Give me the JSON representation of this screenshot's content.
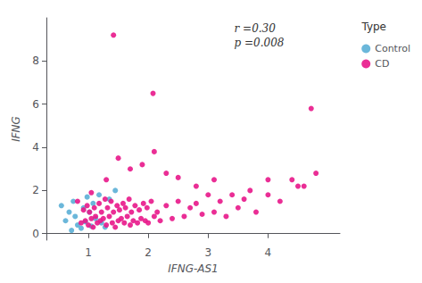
{
  "chart_data": {
    "type": "scatter",
    "xlabel": "IFNG-AS1",
    "ylabel": "IFNG",
    "annotations": [
      "r =0.30",
      "p =0.008"
    ],
    "legend_title": "Type",
    "legend": "upper right",
    "grid": false,
    "xlim": [
      0.3,
      5.2
    ],
    "ylim": [
      -0.3,
      10.0
    ],
    "xticks": [
      1,
      2,
      3,
      4
    ],
    "yticks": [
      0,
      2,
      4,
      6,
      8
    ],
    "series": [
      {
        "name": "Control",
        "color": "#5BAFD6",
        "x": [
          0.55,
          0.62,
          0.68,
          0.72,
          0.75,
          0.78,
          0.82,
          0.88,
          0.92,
          0.95,
          0.98,
          1.02,
          1.05,
          1.08,
          1.12,
          1.18,
          1.22,
          1.28,
          1.35,
          1.45
        ],
        "y": [
          1.3,
          0.6,
          1.0,
          0.15,
          1.5,
          0.8,
          0.4,
          0.25,
          1.2,
          0.55,
          1.7,
          1.0,
          0.35,
          1.4,
          0.7,
          1.8,
          0.5,
          0.3,
          1.6,
          2.0
        ]
      },
      {
        "name": "CD",
        "color": "#E8178A",
        "x": [
          0.82,
          0.88,
          0.92,
          0.95,
          0.98,
          1.0,
          1.02,
          1.05,
          1.05,
          1.08,
          1.1,
          1.12,
          1.15,
          1.18,
          1.2,
          1.22,
          1.25,
          1.28,
          1.3,
          1.32,
          1.35,
          1.38,
          1.4,
          1.42,
          1.45,
          1.48,
          1.5,
          1.52,
          1.55,
          1.58,
          1.6,
          1.62,
          1.65,
          1.68,
          1.7,
          1.72,
          1.75,
          1.78,
          1.82,
          1.85,
          1.88,
          1.92,
          1.95,
          1.98,
          2.0,
          2.05,
          2.1,
          2.15,
          2.2,
          2.3,
          2.4,
          2.5,
          2.6,
          2.7,
          2.8,
          2.9,
          3.0,
          3.1,
          3.2,
          3.3,
          3.5,
          3.6,
          3.8,
          4.0,
          4.2,
          4.4,
          4.6,
          4.8,
          1.3,
          1.5,
          1.7,
          1.9,
          2.1,
          2.3,
          2.5,
          2.8,
          3.1,
          3.4,
          3.7,
          4.0,
          4.5,
          1.42,
          2.08,
          4.72
        ],
        "y": [
          1.5,
          0.5,
          1.1,
          0.6,
          1.3,
          0.4,
          1.0,
          0.7,
          1.9,
          0.3,
          1.2,
          0.8,
          0.5,
          1.4,
          0.6,
          1.0,
          0.7,
          1.6,
          0.4,
          1.2,
          0.8,
          1.5,
          0.5,
          1.0,
          0.3,
          1.3,
          0.6,
          1.1,
          0.7,
          1.4,
          0.5,
          1.2,
          0.8,
          1.6,
          0.4,
          1.0,
          0.6,
          1.3,
          0.5,
          1.1,
          0.7,
          1.4,
          0.6,
          1.2,
          0.5,
          1.5,
          0.8,
          1.0,
          0.6,
          1.3,
          0.7,
          1.5,
          0.8,
          1.2,
          1.4,
          0.9,
          1.8,
          1.0,
          1.5,
          0.8,
          1.2,
          1.6,
          1.0,
          1.8,
          1.5,
          2.5,
          2.2,
          2.8,
          2.5,
          3.5,
          3.0,
          3.2,
          3.8,
          2.8,
          2.6,
          2.2,
          2.5,
          1.8,
          2.0,
          2.5,
          2.2,
          9.2,
          6.5,
          5.8
        ]
      }
    ]
  }
}
